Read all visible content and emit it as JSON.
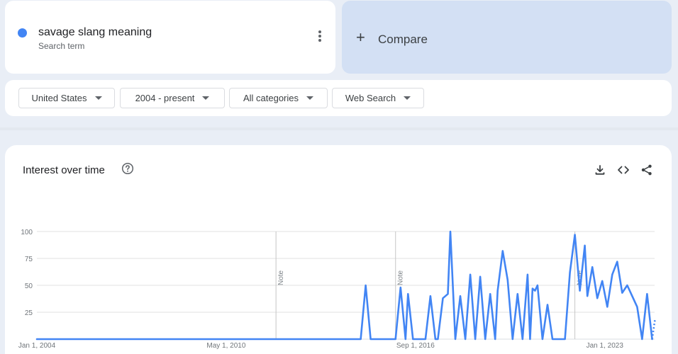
{
  "search_term": {
    "name": "savage slang meaning",
    "subtitle": "Search term",
    "color": "#4285f4"
  },
  "compare": {
    "label": "Compare"
  },
  "filters": [
    {
      "label": "United States"
    },
    {
      "label": "2004 - present"
    },
    {
      "label": "All categories"
    },
    {
      "label": "Web Search"
    }
  ],
  "chart": {
    "title": "Interest over time",
    "help_icon": "help-circle-icon",
    "actions": [
      "download-icon",
      "embed-code-icon",
      "share-icon"
    ]
  },
  "chart_data": {
    "type": "line",
    "title": "Interest over time",
    "xlabel": "",
    "ylabel": "",
    "ylim": [
      0,
      100
    ],
    "yticks": [
      25,
      50,
      75,
      100
    ],
    "x_start": "Jan 1, 2004",
    "x_end": "Sep 2024",
    "x_tick_labels": [
      "Jan 1, 2004",
      "May 1, 2010",
      "Sep 1, 2016",
      "Jan 1, 2023"
    ],
    "notes": [
      {
        "date": "Jan 2012",
        "label": "Note"
      },
      {
        "date": "Jan 2016",
        "label": "Note"
      },
      {
        "date": "Jan 2022",
        "label": "Note"
      }
    ],
    "grid": true,
    "series": [
      {
        "color": "#4285f4",
        "points": [
          [
            "2004-01",
            0
          ],
          [
            "2014-11",
            0
          ],
          [
            "2015-01",
            50
          ],
          [
            "2015-03",
            0
          ],
          [
            "2016-01",
            0
          ],
          [
            "2016-03",
            48
          ],
          [
            "2016-05",
            0
          ],
          [
            "2016-06",
            42
          ],
          [
            "2016-08",
            0
          ],
          [
            "2017-01",
            0
          ],
          [
            "2017-03",
            40
          ],
          [
            "2017-05",
            0
          ],
          [
            "2017-06",
            0
          ],
          [
            "2017-08",
            38
          ],
          [
            "2017-10",
            42
          ],
          [
            "2017-11",
            100
          ],
          [
            "2018-01",
            0
          ],
          [
            "2018-03",
            40
          ],
          [
            "2018-05",
            0
          ],
          [
            "2018-07",
            60
          ],
          [
            "2018-09",
            0
          ],
          [
            "2018-11",
            58
          ],
          [
            "2019-01",
            0
          ],
          [
            "2019-03",
            42
          ],
          [
            "2019-05",
            0
          ],
          [
            "2019-06",
            45
          ],
          [
            "2019-08",
            82
          ],
          [
            "2019-10",
            55
          ],
          [
            "2019-12",
            0
          ],
          [
            "2020-02",
            42
          ],
          [
            "2020-04",
            0
          ],
          [
            "2020-06",
            60
          ],
          [
            "2020-07",
            0
          ],
          [
            "2020-08",
            47
          ],
          [
            "2020-09",
            45
          ],
          [
            "2020-10",
            50
          ],
          [
            "2020-12",
            0
          ],
          [
            "2021-02",
            32
          ],
          [
            "2021-04",
            0
          ],
          [
            "2021-09",
            0
          ],
          [
            "2021-11",
            62
          ],
          [
            "2022-01",
            97
          ],
          [
            "2022-03",
            45
          ],
          [
            "2022-05",
            87
          ],
          [
            "2022-06",
            40
          ],
          [
            "2022-08",
            67
          ],
          [
            "2022-10",
            38
          ],
          [
            "2022-12",
            54
          ],
          [
            "2023-02",
            30
          ],
          [
            "2023-04",
            60
          ],
          [
            "2023-06",
            72
          ],
          [
            "2023-08",
            43
          ],
          [
            "2023-10",
            50
          ],
          [
            "2023-12",
            40
          ],
          [
            "2024-02",
            30
          ],
          [
            "2024-04",
            0
          ],
          [
            "2024-06",
            42
          ],
          [
            "2024-08",
            0
          ]
        ]
      }
    ]
  }
}
